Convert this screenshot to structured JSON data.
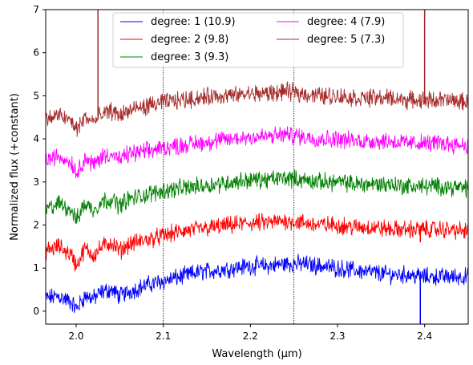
{
  "chart_data": {
    "type": "line",
    "xlabel": "Wavelength (μm)",
    "ylabel": "Normalized flux (+constant)",
    "xlim": [
      1.965,
      2.45
    ],
    "ylim": [
      -0.3,
      7
    ],
    "xticks": [
      2.0,
      2.1,
      2.2,
      2.3,
      2.4
    ],
    "xtick_labels": [
      "2.0",
      "2.1",
      "2.2",
      "2.3",
      "2.4"
    ],
    "yticks": [
      0,
      1,
      2,
      3,
      4,
      5,
      6,
      7
    ],
    "ytick_labels": [
      "0",
      "1",
      "2",
      "3",
      "4",
      "5",
      "6",
      "7"
    ],
    "vlines": [
      2.1,
      2.25
    ],
    "grid": false,
    "legend_location": "upper-center",
    "series": [
      {
        "name": "degree: 1 (10.9)",
        "color": "#0000ff",
        "offset": 0,
        "x": [
          1.965,
          1.98,
          1.995,
          2.0,
          2.01,
          2.02,
          2.03,
          2.04,
          2.05,
          2.06,
          2.08,
          2.1,
          2.12,
          2.14,
          2.16,
          2.18,
          2.2,
          2.22,
          2.24,
          2.26,
          2.28,
          2.3,
          2.32,
          2.34,
          2.36,
          2.38,
          2.4,
          2.42,
          2.45
        ],
        "y": [
          0.3,
          0.35,
          0.2,
          0.05,
          0.35,
          0.3,
          0.45,
          0.5,
          0.35,
          0.45,
          0.6,
          0.7,
          0.8,
          0.9,
          0.95,
          1.0,
          1.05,
          1.05,
          1.1,
          1.1,
          1.05,
          1.0,
          0.95,
          0.9,
          0.85,
          0.85,
          0.8,
          0.8,
          0.8
        ]
      },
      {
        "name": "degree: 2 (9.8)",
        "color": "#ff0000",
        "offset": 1,
        "x": [
          1.965,
          1.98,
          1.995,
          2.0,
          2.01,
          2.02,
          2.03,
          2.04,
          2.05,
          2.06,
          2.08,
          2.1,
          2.12,
          2.14,
          2.16,
          2.18,
          2.2,
          2.22,
          2.24,
          2.26,
          2.28,
          2.3,
          2.32,
          2.34,
          2.36,
          2.38,
          2.4,
          2.42,
          2.45
        ],
        "y": [
          1.4,
          1.5,
          1.3,
          1.05,
          1.45,
          1.3,
          1.5,
          1.6,
          1.4,
          1.55,
          1.65,
          1.75,
          1.85,
          1.9,
          1.95,
          2.0,
          2.05,
          2.05,
          2.1,
          2.05,
          2.0,
          2.0,
          1.95,
          1.95,
          1.9,
          1.9,
          1.9,
          1.9,
          1.85
        ]
      },
      {
        "name": "degree: 3 (9.3)",
        "color": "#008000",
        "offset": 2,
        "x": [
          1.965,
          1.98,
          1.995,
          2.0,
          2.01,
          2.02,
          2.03,
          2.04,
          2.05,
          2.06,
          2.08,
          2.1,
          2.12,
          2.14,
          2.16,
          2.18,
          2.2,
          2.22,
          2.24,
          2.26,
          2.28,
          2.3,
          2.32,
          2.34,
          2.36,
          2.38,
          2.4,
          2.42,
          2.45
        ],
        "y": [
          2.35,
          2.5,
          2.35,
          2.1,
          2.5,
          2.35,
          2.55,
          2.6,
          2.45,
          2.6,
          2.7,
          2.8,
          2.85,
          2.9,
          2.95,
          3.0,
          3.05,
          3.05,
          3.1,
          3.05,
          3.0,
          3.0,
          2.95,
          2.95,
          2.95,
          2.9,
          2.9,
          2.9,
          2.85
        ]
      },
      {
        "name": "degree: 4 (7.9)",
        "color": "#ff00ff",
        "offset": 3,
        "x": [
          1.965,
          1.98,
          1.995,
          2.0,
          2.01,
          2.02,
          2.03,
          2.04,
          2.05,
          2.06,
          2.08,
          2.1,
          2.12,
          2.14,
          2.16,
          2.18,
          2.2,
          2.22,
          2.24,
          2.26,
          2.28,
          2.3,
          2.32,
          2.34,
          2.36,
          2.38,
          2.4,
          2.42,
          2.45
        ],
        "y": [
          3.5,
          3.6,
          3.45,
          3.2,
          3.55,
          3.4,
          3.6,
          3.65,
          3.5,
          3.65,
          3.7,
          3.8,
          3.85,
          3.9,
          3.95,
          4.0,
          4.05,
          4.05,
          4.1,
          4.05,
          4.0,
          4.0,
          3.95,
          3.95,
          3.95,
          3.9,
          3.9,
          3.9,
          3.85
        ]
      },
      {
        "name": "degree: 5 (7.3)",
        "color": "#a52a2a",
        "offset": 4,
        "x": [
          1.965,
          1.98,
          1.995,
          2.0,
          2.01,
          2.02,
          2.03,
          2.04,
          2.05,
          2.06,
          2.08,
          2.1,
          2.12,
          2.14,
          2.16,
          2.18,
          2.2,
          2.22,
          2.24,
          2.26,
          2.28,
          2.3,
          2.32,
          2.34,
          2.36,
          2.38,
          2.4,
          2.42,
          2.45
        ],
        "y": [
          4.45,
          4.55,
          4.4,
          4.2,
          4.5,
          4.4,
          4.55,
          4.65,
          4.55,
          4.65,
          4.75,
          4.85,
          4.9,
          4.95,
          5.0,
          5.0,
          5.05,
          5.05,
          5.1,
          5.05,
          5.0,
          5.0,
          4.95,
          4.95,
          4.95,
          4.9,
          4.9,
          4.9,
          4.85
        ]
      }
    ],
    "spikes": [
      {
        "series": 4,
        "x": 2.025,
        "y_top": 7
      },
      {
        "series": 4,
        "x": 2.4,
        "y_top": 7
      },
      {
        "series": 1,
        "x": 2.395,
        "y_top": 1.6
      },
      {
        "series": 0,
        "x": 2.395,
        "y_top": -0.3
      }
    ]
  }
}
